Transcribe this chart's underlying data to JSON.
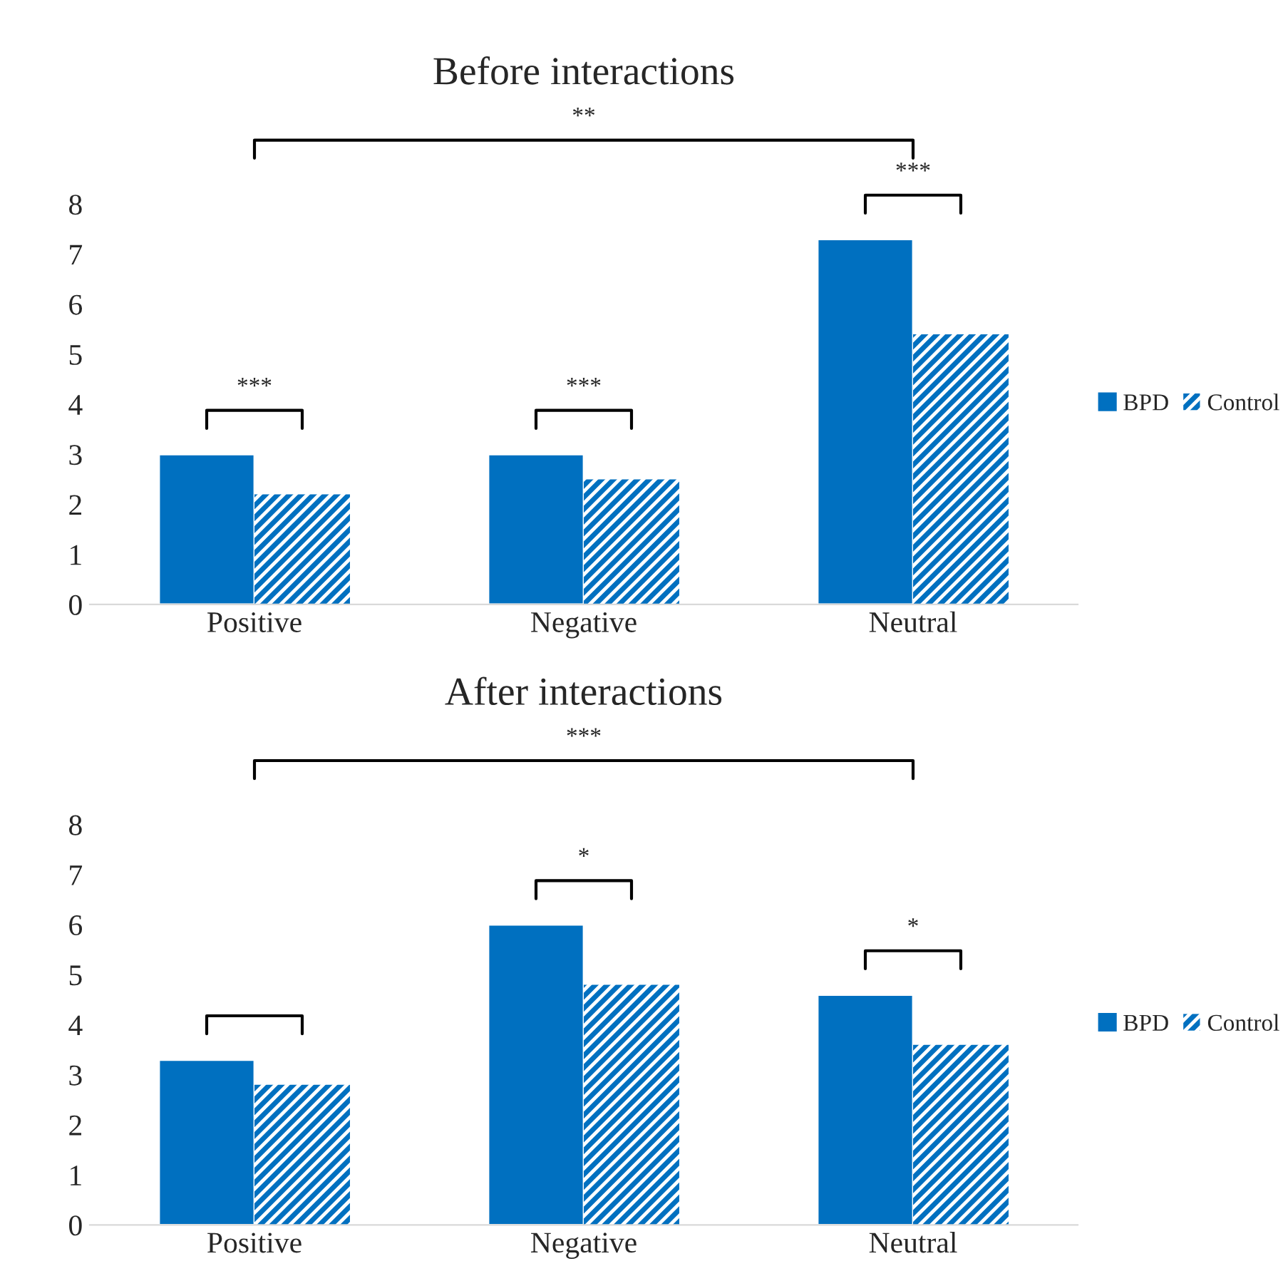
{
  "chart_data": [
    {
      "type": "bar",
      "title": "Before interactions",
      "categories": [
        "Positive",
        "Negative",
        "Neutral"
      ],
      "series": [
        {
          "name": "BPD",
          "color": "#0070c0",
          "values": [
            3.0,
            3.0,
            7.3
          ]
        },
        {
          "name": "Control",
          "color": "#0070c0",
          "values": [
            2.2,
            2.5,
            5.4
          ]
        }
      ],
      "ylim": [
        0,
        8
      ],
      "yticks": [
        0,
        1,
        2,
        3,
        4,
        5,
        6,
        7,
        8
      ],
      "grid": false,
      "legend": "right",
      "annotations": [
        "**",
        "***",
        "***",
        "***"
      ]
    },
    {
      "type": "bar",
      "title": "After interactions",
      "categories": [
        "Positive",
        "Negative",
        "Neutral"
      ],
      "series": [
        {
          "name": "BPD",
          "color": "#0070c0",
          "values": [
            3.3,
            6.0,
            4.6
          ]
        },
        {
          "name": "Control",
          "color": "#0070c0",
          "values": [
            2.8,
            4.8,
            3.6
          ]
        }
      ],
      "ylim": [
        0,
        8
      ],
      "yticks": [
        0,
        1,
        2,
        3,
        4,
        5,
        6,
        7,
        8
      ],
      "grid": false,
      "legend": "right",
      "annotations": [
        "***",
        "*",
        "*"
      ]
    }
  ]
}
